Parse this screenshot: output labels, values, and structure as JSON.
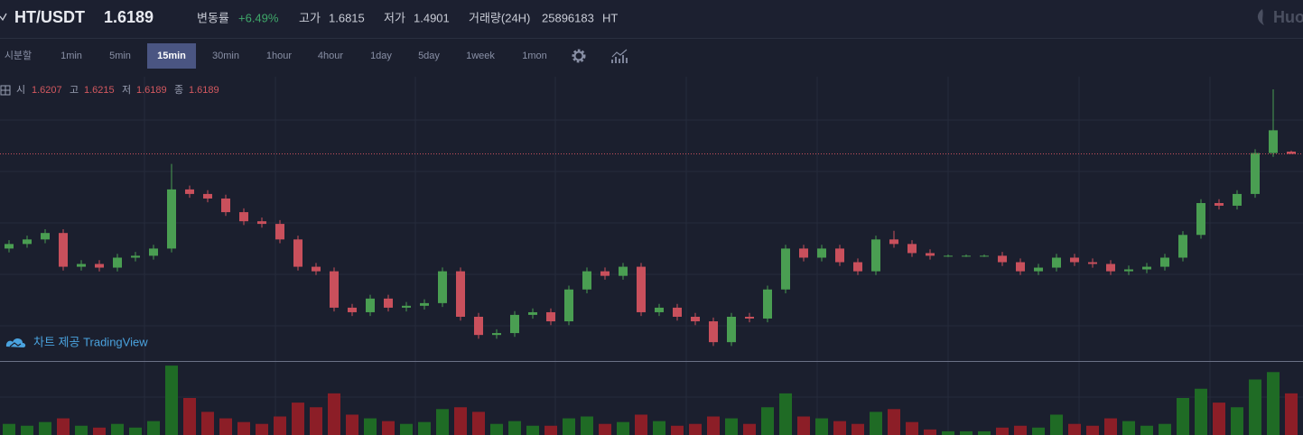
{
  "header": {
    "pair": "HT/USDT",
    "price": 1.6189,
    "change_label": "변동률",
    "change": "+6.49%",
    "high_label": "고가",
    "high": 1.6815,
    "low_label": "저가",
    "low": 1.4901,
    "volume_label": "거래량(24H)",
    "volume": 25896183,
    "volume_unit": "HT",
    "logo": "Huo"
  },
  "toolbar": {
    "intervals": [
      "시분할",
      "1min",
      "5min",
      "15min",
      "30min",
      "1hour",
      "4hour",
      "1day",
      "5day",
      "1week",
      "1mon"
    ],
    "active": 3
  },
  "legend": {
    "open_label": "시",
    "open": 1.6207,
    "high_label": "고",
    "high": 1.6215,
    "low_label": "저",
    "low": 1.6189,
    "close_label": "종",
    "close": 1.6189
  },
  "watermark": "차트 제공 TradingView",
  "chart_data": {
    "type": "candlestick",
    "ylim": [
      1.455,
      1.68
    ],
    "vlim": [
      0,
      80
    ],
    "up_color": "#4a9e52",
    "down_color": "#c9505c",
    "up_volume_color": "#1f6b25",
    "down_volume_color": "#8c1e27",
    "open": [
      1.544,
      1.5476,
      1.5512,
      1.5563,
      1.5296,
      1.5318,
      1.5289,
      1.5368,
      1.5383,
      1.544,
      1.5908,
      1.5872,
      1.5836,
      1.5728,
      1.5656,
      1.5635,
      1.5512,
      1.5296,
      1.526,
      1.4972,
      1.4936,
      1.5044,
      1.4972,
      1.4987,
      1.5008,
      1.526,
      1.49,
      1.4756,
      1.4771,
      1.4915,
      1.4936,
      1.4864,
      1.5116,
      1.526,
      1.5224,
      1.5296,
      1.4936,
      1.4972,
      1.49,
      1.4864,
      1.4699,
      1.49,
      1.4886,
      1.5116,
      1.544,
      1.5368,
      1.544,
      1.5332,
      1.526,
      1.5512,
      1.5476,
      1.5404,
      1.5383,
      1.5383,
      1.5383,
      1.5383,
      1.5332,
      1.526,
      1.5289,
      1.5368,
      1.5332,
      1.5318,
      1.526,
      1.5275,
      1.5296,
      1.5368,
      1.5548,
      1.58,
      1.5779,
      1.5872,
      1.6196,
      1.6207
    ],
    "high": [
      1.5506,
      1.5542,
      1.5593,
      1.5593,
      1.5348,
      1.5348,
      1.5398,
      1.5413,
      1.547,
      1.611,
      1.5938,
      1.5902,
      1.5866,
      1.5758,
      1.5686,
      1.5665,
      1.5542,
      1.5326,
      1.529,
      1.5002,
      1.5074,
      1.5074,
      1.5017,
      1.5038,
      1.529,
      1.529,
      1.493,
      1.4801,
      1.4945,
      1.4966,
      1.4966,
      1.5146,
      1.529,
      1.529,
      1.5326,
      1.5326,
      1.5002,
      1.5002,
      1.493,
      1.4894,
      1.493,
      1.493,
      1.5146,
      1.547,
      1.547,
      1.547,
      1.547,
      1.5362,
      1.5542,
      1.558,
      1.5506,
      1.5434,
      1.5393,
      1.5393,
      1.5393,
      1.5413,
      1.5362,
      1.5319,
      1.5398,
      1.5398,
      1.5362,
      1.5348,
      1.5305,
      1.5326,
      1.5398,
      1.5578,
      1.583,
      1.583,
      1.5902,
      1.6226,
      1.67,
      1.6215
    ],
    "low": [
      1.541,
      1.5446,
      1.5482,
      1.5266,
      1.5266,
      1.5259,
      1.5259,
      1.5338,
      1.5353,
      1.541,
      1.5842,
      1.5806,
      1.5698,
      1.5626,
      1.5605,
      1.5482,
      1.5266,
      1.523,
      1.4942,
      1.4906,
      1.4906,
      1.4942,
      1.4942,
      1.4957,
      1.4978,
      1.487,
      1.4726,
      1.4726,
      1.4741,
      1.4885,
      1.4834,
      1.4834,
      1.5086,
      1.5194,
      1.5194,
      1.4906,
      1.4906,
      1.487,
      1.4834,
      1.4669,
      1.4669,
      1.4856,
      1.4856,
      1.5086,
      1.5338,
      1.5338,
      1.5302,
      1.523,
      1.523,
      1.5446,
      1.5374,
      1.5353,
      1.5373,
      1.5373,
      1.5373,
      1.5302,
      1.523,
      1.523,
      1.5259,
      1.5302,
      1.5288,
      1.523,
      1.523,
      1.5245,
      1.5266,
      1.5338,
      1.5518,
      1.5749,
      1.5749,
      1.5842,
      1.6166,
      1.6189
    ],
    "close": [
      1.5476,
      1.5512,
      1.5563,
      1.5296,
      1.5318,
      1.5289,
      1.5368,
      1.5383,
      1.544,
      1.5908,
      1.5872,
      1.5836,
      1.5728,
      1.5656,
      1.5635,
      1.5512,
      1.5296,
      1.526,
      1.4972,
      1.4936,
      1.5044,
      1.4972,
      1.4987,
      1.5008,
      1.526,
      1.49,
      1.4756,
      1.4771,
      1.4915,
      1.4936,
      1.4864,
      1.5116,
      1.526,
      1.5224,
      1.5296,
      1.4936,
      1.4972,
      1.49,
      1.4864,
      1.4699,
      1.49,
      1.4886,
      1.5116,
      1.544,
      1.5368,
      1.544,
      1.5332,
      1.526,
      1.5512,
      1.5476,
      1.5404,
      1.5383,
      1.5383,
      1.5383,
      1.5383,
      1.5332,
      1.526,
      1.5289,
      1.5368,
      1.5332,
      1.5318,
      1.526,
      1.5275,
      1.5296,
      1.5368,
      1.5548,
      1.58,
      1.5779,
      1.5872,
      1.6196,
      1.6376,
      1.6189
    ],
    "volume": [
      12,
      10,
      14,
      18,
      10,
      8,
      12,
      8,
      15,
      75,
      40,
      25,
      18,
      14,
      12,
      20,
      35,
      30,
      45,
      22,
      18,
      15,
      12,
      14,
      28,
      30,
      25,
      12,
      15,
      10,
      10,
      18,
      20,
      12,
      14,
      22,
      15,
      10,
      12,
      20,
      18,
      12,
      30,
      45,
      20,
      18,
      15,
      12,
      25,
      28,
      14,
      6,
      4,
      4,
      4,
      8,
      10,
      8,
      22,
      12,
      10,
      18,
      15,
      10,
      12,
      40,
      50,
      35,
      30,
      60,
      68,
      45
    ]
  }
}
